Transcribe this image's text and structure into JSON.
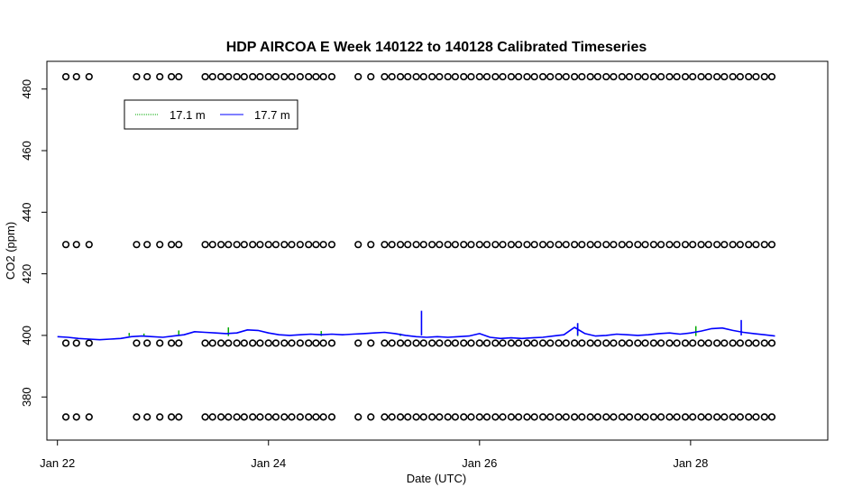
{
  "chart_data": {
    "type": "line",
    "title": "HDP AIRCOA E  Week 140122 to 140128  Calibrated Timeseries",
    "xlabel": "Date (UTC)",
    "ylabel": "CO2 (ppm)",
    "xlim": [
      -0.1,
      7.3
    ],
    "ylim": [
      366,
      489
    ],
    "x_ticks": [
      {
        "value": 0,
        "label": "Jan 22"
      },
      {
        "value": 2,
        "label": "Jan 24"
      },
      {
        "value": 4,
        "label": "Jan 26"
      },
      {
        "value": 6,
        "label": "Jan 28"
      }
    ],
    "y_ticks": [
      380,
      400,
      420,
      440,
      460,
      480
    ],
    "legend": {
      "position": "top-left",
      "entries": [
        {
          "label": "17.1 m",
          "color": "#00aa00"
        },
        {
          "label": "17.7 m",
          "color": "#0000ff"
        }
      ]
    },
    "series": [
      {
        "name": "17.7 m",
        "color": "#0000ff",
        "x": [
          0,
          0.1,
          0.2,
          0.3,
          0.4,
          0.5,
          0.6,
          0.7,
          0.8,
          0.9,
          1.0,
          1.1,
          1.2,
          1.3,
          1.4,
          1.5,
          1.6,
          1.7,
          1.8,
          1.9,
          2.0,
          2.1,
          2.2,
          2.3,
          2.4,
          2.5,
          2.6,
          2.7,
          2.8,
          2.9,
          3.0,
          3.1,
          3.2,
          3.3,
          3.4,
          3.5,
          3.6,
          3.7,
          3.8,
          3.9,
          4.0,
          4.1,
          4.2,
          4.3,
          4.4,
          4.5,
          4.6,
          4.7,
          4.8,
          4.9,
          5.0,
          5.1,
          5.2,
          5.3,
          5.4,
          5.5,
          5.6,
          5.7,
          5.8,
          5.9,
          6.0,
          6.1,
          6.2,
          6.3,
          6.4,
          6.5,
          6.6,
          6.7,
          6.8
        ],
        "y": [
          399.6,
          399.4,
          399.0,
          398.8,
          398.6,
          398.8,
          399.0,
          399.6,
          399.8,
          399.6,
          399.4,
          399.8,
          400.2,
          401.2,
          401.0,
          400.8,
          400.6,
          400.8,
          401.8,
          401.6,
          400.8,
          400.2,
          400.0,
          400.2,
          400.4,
          400.2,
          400.4,
          400.2,
          400.4,
          400.6,
          400.8,
          401.0,
          400.6,
          400.0,
          399.6,
          399.4,
          399.6,
          399.4,
          399.6,
          399.8,
          400.6,
          399.4,
          399.0,
          399.2,
          399.0,
          399.2,
          399.4,
          399.8,
          400.2,
          402.6,
          400.6,
          399.8,
          400.0,
          400.4,
          400.2,
          400.0,
          400.2,
          400.6,
          400.8,
          400.4,
          400.8,
          401.4,
          402.2,
          402.4,
          401.6,
          401.0,
          400.6,
          400.2,
          399.8
        ]
      },
      {
        "name": "17.1 m",
        "color": "#00aa00",
        "x": [
          0.68,
          0.82,
          1.15,
          1.62,
          2.5,
          3.25,
          4.93,
          6.05
        ],
        "y": [
          400.8,
          400.6,
          401.6,
          402.6,
          401.4,
          400.6,
          403.8,
          403.0
        ]
      }
    ],
    "spikes": [
      {
        "x": 3.45,
        "y": 408.0
      },
      {
        "x": 4.93,
        "y": 404.0
      },
      {
        "x": 6.48,
        "y": 405.0
      }
    ],
    "calibration_levels": [
      484,
      429.5,
      397.5,
      373.5
    ],
    "calibration_cycles": [
      {
        "x": [
          0.08,
          0.18,
          0.3
        ]
      },
      {
        "x": [
          0.75,
          0.85,
          0.97,
          1.08,
          1.15
        ]
      },
      {
        "x": [
          1.4,
          1.47,
          1.55,
          1.62,
          1.7,
          1.77,
          1.85,
          1.92,
          2.0,
          2.07,
          2.15,
          2.22,
          2.3,
          2.38,
          2.45,
          2.52,
          2.6
        ]
      },
      {
        "x": [
          2.85,
          2.97
        ]
      },
      {
        "x": [
          3.1,
          3.17,
          3.25,
          3.32,
          3.4,
          3.47,
          3.55,
          3.62,
          3.7,
          3.77,
          3.85,
          3.92,
          4.0,
          4.07,
          4.15,
          4.22,
          4.3,
          4.37,
          4.45,
          4.52,
          4.6,
          4.67,
          4.75,
          4.82,
          4.9,
          4.97,
          5.05,
          5.12,
          5.2,
          5.27,
          5.35,
          5.42,
          5.5,
          5.57,
          5.65,
          5.72,
          5.8,
          5.87,
          5.95,
          6.02,
          6.1,
          6.17,
          6.25,
          6.32,
          6.4,
          6.47,
          6.55,
          6.62,
          6.7,
          6.77
        ]
      }
    ]
  }
}
